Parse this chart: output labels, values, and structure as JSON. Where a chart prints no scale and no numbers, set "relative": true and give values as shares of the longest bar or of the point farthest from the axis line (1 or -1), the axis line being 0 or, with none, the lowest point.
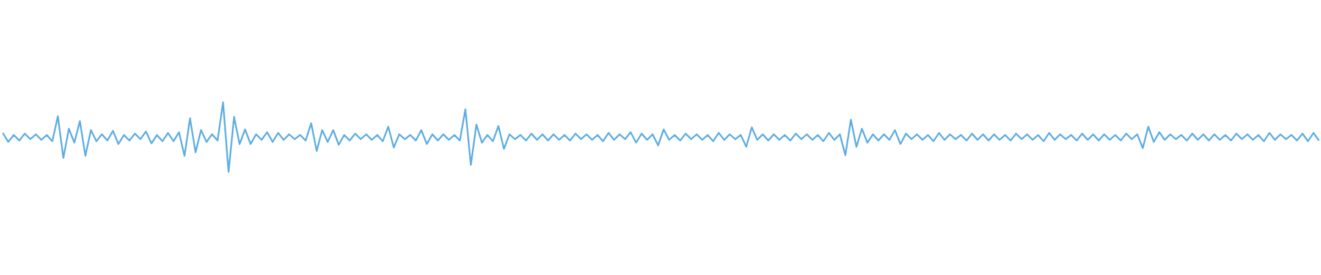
{
  "chart_data": {
    "type": "line",
    "relative": true,
    "color": "#5dade2",
    "categories": [
      null,
      null,
      null,
      null,
      null,
      null,
      null,
      null,
      null,
      null,
      null,
      null,
      null,
      null,
      null,
      null,
      null,
      null,
      null,
      null,
      null,
      null,
      null,
      null,
      null,
      null,
      null,
      null,
      null,
      null,
      null,
      null,
      null,
      null,
      null,
      null,
      null,
      null,
      null,
      null,
      null,
      null,
      null,
      null,
      null,
      null,
      null,
      null,
      null,
      null,
      null,
      null,
      null,
      null,
      null,
      null,
      null,
      null,
      null,
      null,
      null,
      null,
      null,
      null,
      null,
      null,
      null,
      null,
      null,
      null,
      null,
      null,
      null,
      null,
      null,
      null,
      null,
      null,
      null,
      null,
      null,
      null,
      null,
      null,
      null,
      null,
      null,
      null,
      null,
      null,
      null,
      null,
      null,
      null,
      null,
      null,
      null,
      null,
      null,
      null,
      null,
      null,
      null,
      null,
      null,
      null,
      null,
      null,
      null,
      null,
      null,
      null,
      null,
      null,
      null,
      null,
      null,
      null,
      null,
      null,
      null,
      null,
      null,
      null,
      null,
      null,
      null,
      null,
      null,
      null,
      null,
      null,
      null,
      null,
      null,
      null,
      null,
      null,
      null,
      null,
      null,
      null,
      null,
      null,
      null,
      null,
      null,
      null,
      null,
      null,
      null,
      null,
      null,
      null,
      null,
      null,
      null,
      null,
      null,
      null,
      null,
      null,
      null,
      null,
      null,
      null,
      null,
      null,
      null,
      null,
      null,
      null,
      null,
      null,
      null,
      null,
      null,
      null,
      null,
      null,
      null,
      null,
      null,
      null,
      null,
      null,
      null,
      null,
      null,
      null,
      null,
      null,
      null,
      null,
      null,
      null,
      null,
      null,
      null,
      null,
      null,
      null,
      null,
      null,
      null,
      null,
      null,
      null,
      null,
      null,
      null,
      null,
      null,
      null,
      null,
      null,
      null,
      null,
      null,
      null,
      null,
      null,
      null,
      null,
      null,
      null,
      null,
      null,
      null,
      null,
      null,
      null,
      null,
      null,
      null,
      null,
      null,
      null,
      null,
      null
    ],
    "values": [
      0.56,
      0.43,
      0.53,
      0.45,
      0.55,
      0.47,
      0.54,
      0.46,
      0.53,
      0.44,
      0.8,
      0.2,
      0.62,
      0.42,
      0.73,
      0.23,
      0.6,
      0.44,
      0.54,
      0.45,
      0.59,
      0.4,
      0.53,
      0.45,
      0.55,
      0.47,
      0.58,
      0.41,
      0.53,
      0.44,
      0.56,
      0.44,
      0.57,
      0.23,
      0.77,
      0.28,
      0.6,
      0.43,
      0.54,
      0.45,
      1.0,
      0.0,
      0.79,
      0.4,
      0.61,
      0.4,
      0.54,
      0.46,
      0.57,
      0.43,
      0.56,
      0.46,
      0.54,
      0.47,
      0.53,
      0.45,
      0.7,
      0.3,
      0.6,
      0.43,
      0.6,
      0.39,
      0.53,
      0.45,
      0.55,
      0.47,
      0.54,
      0.46,
      0.53,
      0.44,
      0.65,
      0.35,
      0.54,
      0.47,
      0.53,
      0.45,
      0.6,
      0.4,
      0.54,
      0.45,
      0.54,
      0.46,
      0.53,
      0.45,
      0.9,
      0.1,
      0.68,
      0.42,
      0.53,
      0.44,
      0.66,
      0.33,
      0.54,
      0.47,
      0.53,
      0.45,
      0.55,
      0.46,
      0.54,
      0.45,
      0.54,
      0.46,
      0.53,
      0.45,
      0.55,
      0.47,
      0.54,
      0.46,
      0.53,
      0.44,
      0.56,
      0.46,
      0.54,
      0.47,
      0.57,
      0.42,
      0.55,
      0.46,
      0.54,
      0.38,
      0.61,
      0.46,
      0.53,
      0.45,
      0.55,
      0.47,
      0.54,
      0.46,
      0.53,
      0.44,
      0.56,
      0.46,
      0.54,
      0.47,
      0.53,
      0.36,
      0.64,
      0.46,
      0.54,
      0.45,
      0.54,
      0.46,
      0.53,
      0.45,
      0.55,
      0.47,
      0.54,
      0.46,
      0.53,
      0.44,
      0.56,
      0.46,
      0.54,
      0.24,
      0.75,
      0.36,
      0.62,
      0.42,
      0.54,
      0.45,
      0.54,
      0.46,
      0.6,
      0.4,
      0.55,
      0.47,
      0.54,
      0.46,
      0.53,
      0.44,
      0.56,
      0.46,
      0.54,
      0.47,
      0.53,
      0.45,
      0.55,
      0.46,
      0.54,
      0.45,
      0.54,
      0.46,
      0.53,
      0.45,
      0.55,
      0.47,
      0.54,
      0.46,
      0.53,
      0.44,
      0.56,
      0.46,
      0.54,
      0.47,
      0.53,
      0.45,
      0.55,
      0.46,
      0.54,
      0.45,
      0.54,
      0.46,
      0.53,
      0.45,
      0.55,
      0.47,
      0.54,
      0.34,
      0.65,
      0.43,
      0.57,
      0.46,
      0.54,
      0.47,
      0.53,
      0.45,
      0.55,
      0.46,
      0.54,
      0.45,
      0.54,
      0.46,
      0.53,
      0.45,
      0.55,
      0.47,
      0.54,
      0.46,
      0.53,
      0.44,
      0.56,
      0.46,
      0.54,
      0.47,
      0.53,
      0.45,
      0.55,
      0.44,
      0.56,
      0.45
    ]
  }
}
